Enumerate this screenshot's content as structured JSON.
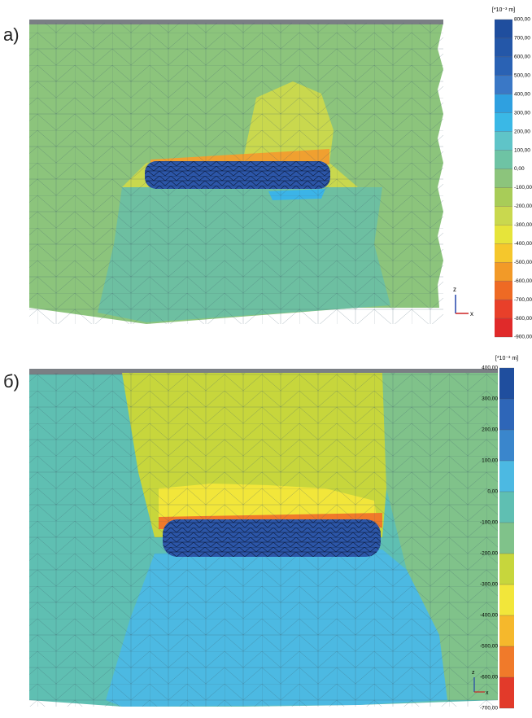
{
  "panel_a": {
    "label": "а)",
    "legend": {
      "unit": "[*10⁻³ m]",
      "labels": [
        "800,00",
        "700,00",
        "600,00",
        "500,00",
        "400,00",
        "300,00",
        "200,00",
        "100,00",
        "0,00",
        "-100,00",
        "-200,00",
        "-300,00",
        "-400,00",
        "-500,00",
        "-600,00",
        "-700,00",
        "-800,00",
        "-900,00"
      ]
    },
    "axes": {
      "z": "z",
      "x": "x"
    }
  },
  "panel_b": {
    "label": "б)",
    "legend": {
      "unit": "[*10⁻³ m]",
      "labels": [
        "400,00",
        "300,00",
        "200,00",
        "100,00",
        "0,00",
        "-100,00",
        "-200,00",
        "-300,00",
        "-400,00",
        "-500,00",
        "-600,00",
        "-700,00"
      ]
    },
    "axes": {
      "z": "z",
      "x": "x"
    }
  }
}
